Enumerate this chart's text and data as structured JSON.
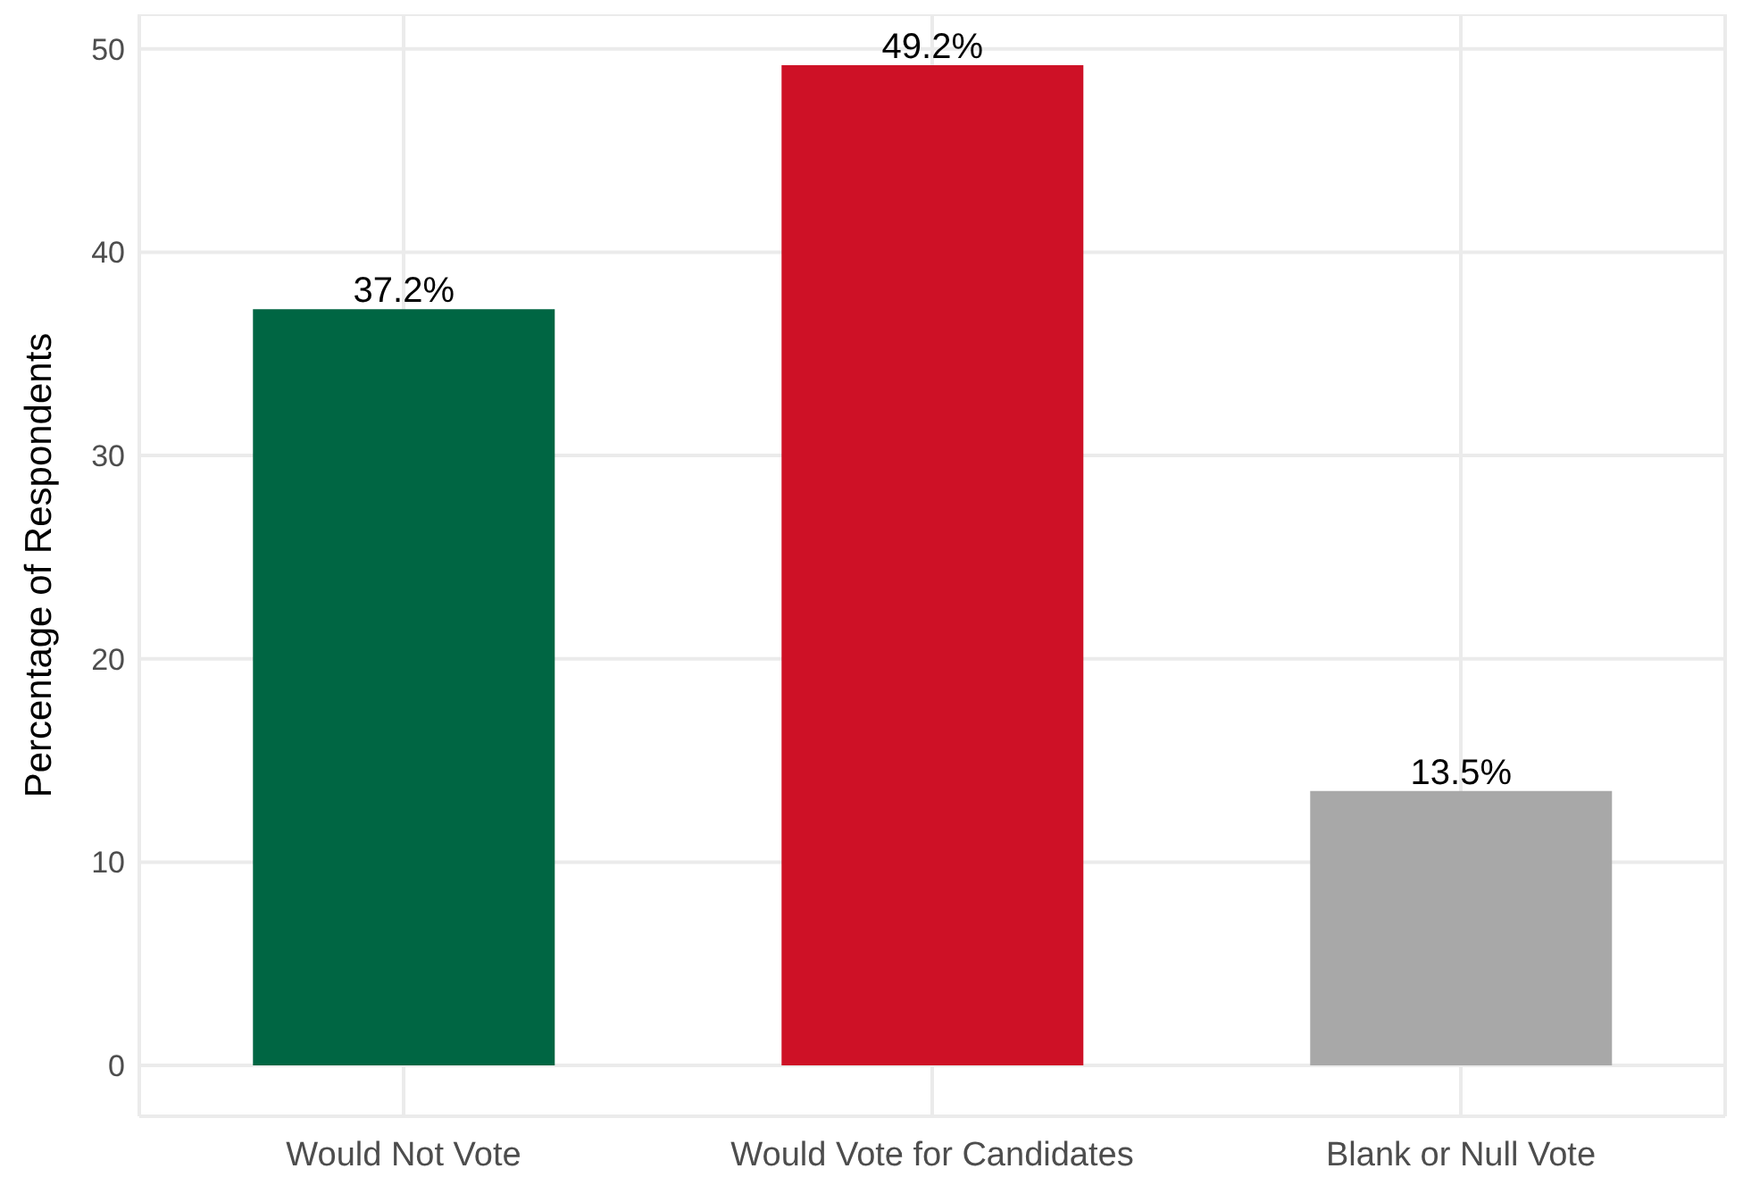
{
  "chart_data": {
    "type": "bar",
    "ylabel": "Percentage of Respondents",
    "categories": [
      "Would Not Vote",
      "Would Vote for Candidates",
      "Blank or Null Vote"
    ],
    "values": [
      37.2,
      49.2,
      13.5
    ],
    "colors": [
      "#006643",
      "#ce1126",
      "#a8a8a8"
    ],
    "value_labels": [
      "37.2%",
      "49.2%",
      "13.5%"
    ],
    "ylim": [
      -2.5,
      51.7
    ],
    "yticks": [
      0,
      10,
      20,
      30,
      40,
      50
    ],
    "grid": true
  }
}
